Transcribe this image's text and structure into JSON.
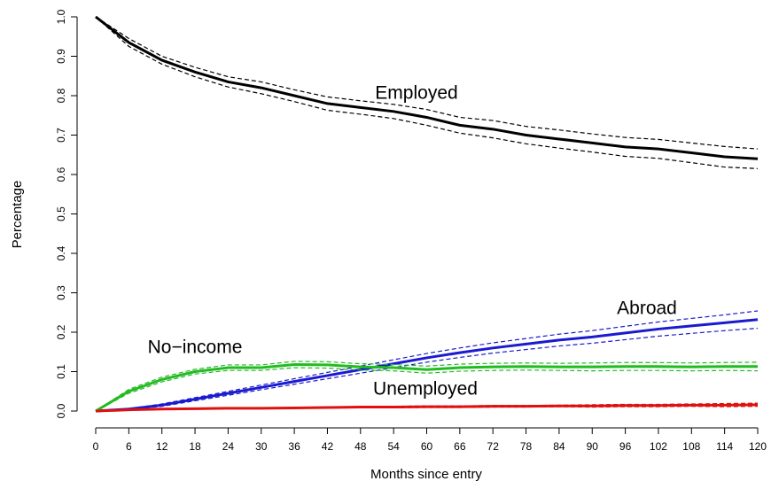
{
  "chart_data": {
    "type": "line",
    "xlabel": "Months since entry",
    "ylabel": "Percentage",
    "x": [
      0,
      6,
      12,
      18,
      24,
      30,
      36,
      42,
      48,
      54,
      60,
      66,
      72,
      78,
      84,
      90,
      96,
      102,
      108,
      114,
      120
    ],
    "xlim": [
      0,
      120
    ],
    "xticks": [
      0,
      6,
      12,
      18,
      24,
      30,
      36,
      42,
      48,
      54,
      60,
      66,
      72,
      78,
      84,
      90,
      96,
      102,
      108,
      114,
      120
    ],
    "ylim": [
      0,
      1
    ],
    "yticks": [
      {
        "value": 0,
        "label": "0.0"
      },
      0.1,
      0.2,
      0.3,
      0.4,
      0.5,
      0.6,
      0.7,
      0.8,
      0.9,
      {
        "value": 1,
        "label": "1.0"
      }
    ],
    "series": [
      {
        "name": "Employed",
        "color": "#000000",
        "values": [
          1.0,
          0.935,
          0.89,
          0.86,
          0.835,
          0.82,
          0.8,
          0.78,
          0.77,
          0.76,
          0.745,
          0.725,
          0.715,
          0.7,
          0.69,
          0.68,
          0.67,
          0.665,
          0.655,
          0.645,
          0.64
        ],
        "upper": [
          1.0,
          0.945,
          0.9,
          0.872,
          0.848,
          0.835,
          0.815,
          0.797,
          0.787,
          0.778,
          0.765,
          0.745,
          0.737,
          0.722,
          0.713,
          0.703,
          0.694,
          0.689,
          0.68,
          0.671,
          0.665
        ],
        "lower": [
          1.0,
          0.925,
          0.88,
          0.848,
          0.822,
          0.805,
          0.785,
          0.763,
          0.753,
          0.742,
          0.725,
          0.705,
          0.693,
          0.678,
          0.667,
          0.657,
          0.646,
          0.641,
          0.63,
          0.619,
          0.615
        ]
      },
      {
        "name": "Abroad",
        "color": "#1a1ad0",
        "values": [
          0,
          0.005,
          0.015,
          0.03,
          0.045,
          0.06,
          0.075,
          0.09,
          0.105,
          0.12,
          0.135,
          0.148,
          0.16,
          0.17,
          0.18,
          0.188,
          0.198,
          0.208,
          0.216,
          0.224,
          0.232
        ],
        "upper": [
          0,
          0.006,
          0.018,
          0.034,
          0.05,
          0.066,
          0.082,
          0.098,
          0.114,
          0.13,
          0.146,
          0.16,
          0.173,
          0.184,
          0.195,
          0.204,
          0.215,
          0.226,
          0.235,
          0.244,
          0.254
        ],
        "lower": [
          0,
          0.004,
          0.012,
          0.026,
          0.04,
          0.054,
          0.068,
          0.082,
          0.096,
          0.11,
          0.124,
          0.136,
          0.147,
          0.156,
          0.165,
          0.172,
          0.181,
          0.19,
          0.197,
          0.204,
          0.21
        ]
      },
      {
        "name": "No−income",
        "color": "#22bb22",
        "values": [
          0,
          0.05,
          0.08,
          0.1,
          0.11,
          0.11,
          0.118,
          0.117,
          0.112,
          0.11,
          0.105,
          0.11,
          0.112,
          0.113,
          0.112,
          0.112,
          0.113,
          0.113,
          0.112,
          0.113,
          0.113
        ],
        "upper": [
          0,
          0.055,
          0.086,
          0.106,
          0.117,
          0.117,
          0.126,
          0.125,
          0.12,
          0.118,
          0.114,
          0.119,
          0.121,
          0.122,
          0.121,
          0.122,
          0.123,
          0.123,
          0.122,
          0.123,
          0.124
        ],
        "lower": [
          0,
          0.045,
          0.074,
          0.094,
          0.103,
          0.103,
          0.11,
          0.109,
          0.104,
          0.102,
          0.096,
          0.101,
          0.103,
          0.104,
          0.103,
          0.102,
          0.103,
          0.103,
          0.102,
          0.103,
          0.102
        ]
      },
      {
        "name": "Unemployed",
        "color": "#e01010",
        "values": [
          0,
          0.003,
          0.005,
          0.006,
          0.007,
          0.007,
          0.008,
          0.009,
          0.01,
          0.01,
          0.011,
          0.011,
          0.012,
          0.012,
          0.013,
          0.013,
          0.014,
          0.014,
          0.015,
          0.015,
          0.016
        ],
        "upper": [
          0,
          0.004,
          0.006,
          0.007,
          0.008,
          0.008,
          0.009,
          0.01,
          0.011,
          0.012,
          0.013,
          0.013,
          0.014,
          0.014,
          0.015,
          0.016,
          0.017,
          0.017,
          0.018,
          0.019,
          0.02
        ],
        "lower": [
          0,
          0.002,
          0.004,
          0.005,
          0.006,
          0.006,
          0.007,
          0.008,
          0.009,
          0.008,
          0.009,
          0.009,
          0.01,
          0.01,
          0.011,
          0.01,
          0.011,
          0.011,
          0.012,
          0.011,
          0.012
        ]
      }
    ]
  }
}
